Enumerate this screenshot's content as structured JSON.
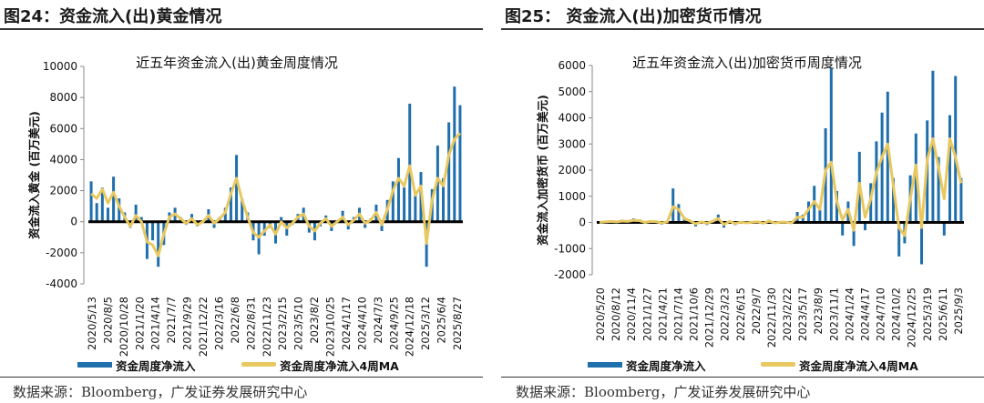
{
  "source": "数据来源：Bloomberg，广发证券发展研究中心",
  "colors": {
    "bar": "#1f6fad",
    "ma": "#e8c860",
    "zero": "#000000"
  },
  "chart_data": [
    {
      "type": "bar+line",
      "figure_title": "图24：资金流入(出)黄金情况",
      "title": "近五年资金流入(出)黄金周度情况",
      "ylabel": "资金流入黄金 (百万美元)",
      "ylim": [
        -4000,
        10000
      ],
      "yticks": [
        -4000,
        -2000,
        0,
        2000,
        4000,
        6000,
        8000,
        10000
      ],
      "xticks": [
        "2020/5/13",
        "2020/8/5",
        "2020/10/28",
        "2021/1/20",
        "2021/4/14",
        "2021/7/7",
        "2021/9/29",
        "2021/12/22",
        "2022/3/16",
        "2022/6/8",
        "2022/8/31",
        "2022/11/23",
        "2023/2/15",
        "2023/5/10",
        "2023/8/2",
        "2023/10/25",
        "2024/1/17",
        "2024/4/10",
        "2024/7/3",
        "2024/9/25",
        "2024/12/18",
        "2025/3/12",
        "2025/6/4",
        "2025/8/27"
      ],
      "series": [
        {
          "name": "资金周度净流入",
          "kind": "bar",
          "values": [
            2600,
            1200,
            2200,
            900,
            2900,
            1500,
            600,
            -400,
            1100,
            300,
            -2400,
            -1200,
            -2900,
            -1500,
            600,
            900,
            300,
            -200,
            500,
            -300,
            100,
            800,
            -400,
            300,
            900,
            2200,
            4300,
            1500,
            600,
            -1200,
            -2100,
            -900,
            -400,
            -1400,
            300,
            -900,
            -200,
            500,
            900,
            -700,
            -1200,
            -300,
            400,
            -600,
            -100,
            700,
            -500,
            300,
            900,
            -400,
            200,
            1100,
            -600,
            1400,
            2600,
            4100,
            2200,
            7600,
            1800,
            3200,
            -2900,
            2100,
            4900,
            2800,
            6400,
            8700,
            7500
          ]
        },
        {
          "name": "资金周度净流入4周MA",
          "kind": "line",
          "values": [
            1800,
            1500,
            2100,
            1200,
            1900,
            1000,
            300,
            -300,
            400,
            0,
            -1300,
            -1500,
            -2200,
            -800,
            300,
            500,
            200,
            -100,
            200,
            -200,
            0,
            400,
            -100,
            200,
            600,
            1800,
            2800,
            1400,
            300,
            -700,
            -1000,
            -600,
            -200,
            -800,
            0,
            -400,
            -100,
            300,
            500,
            -300,
            -600,
            -100,
            200,
            -300,
            0,
            300,
            -200,
            100,
            500,
            -100,
            100,
            600,
            -200,
            800,
            2000,
            2800,
            2300,
            3600,
            1700,
            2300,
            -1400,
            1400,
            2800,
            2300,
            4300,
            5300,
            5700
          ]
        }
      ]
    },
    {
      "type": "bar+line",
      "figure_title": "图25：   资金流入(出)加密货币情况",
      "title": "近五年资金流入(出)加密货币周度情况",
      "ylabel": "资金流入加密货币 (百万美元)",
      "ylim": [
        -2000,
        6000
      ],
      "yticks": [
        -2000,
        -1000,
        0,
        1000,
        2000,
        3000,
        4000,
        5000,
        6000
      ],
      "xticks": [
        "2020/5/20",
        "2020/8/12",
        "2020/11/4",
        "2021/1/27",
        "2021/4/21",
        "2021/7/14",
        "2021/10/6",
        "2021/12/29",
        "2022/3/23",
        "2022/6/15",
        "2022/9/7",
        "2022/11/30",
        "2023/2/22",
        "2023/5/17",
        "2023/8/9",
        "2023/11/1",
        "2024/1/24",
        "2024/4/17",
        "2024/7/10",
        "2024/10/2",
        "2024/12/25",
        "2025/3/19",
        "2025/6/11",
        "2025/9/3"
      ],
      "series": [
        {
          "name": "资金周度净流入",
          "kind": "bar",
          "values": [
            50,
            40,
            80,
            30,
            100,
            60,
            150,
            120,
            -50,
            80,
            60,
            -80,
            40,
            1300,
            700,
            200,
            100,
            -150,
            50,
            -100,
            80,
            300,
            -200,
            60,
            -100,
            20,
            -50,
            30,
            40,
            -60,
            100,
            -50,
            30,
            20,
            -40,
            400,
            300,
            800,
            1400,
            600,
            3600,
            5900,
            1200,
            -500,
            800,
            -900,
            2700,
            -300,
            1500,
            3100,
            4200,
            5000,
            1700,
            -1300,
            -800,
            1800,
            3400,
            -1600,
            3900,
            5800,
            2500,
            -500,
            4100,
            5600,
            1700
          ]
        },
        {
          "name": "资金周度净流入4周MA",
          "kind": "line",
          "values": [
            0,
            20,
            40,
            20,
            50,
            40,
            80,
            70,
            0,
            40,
            30,
            -20,
            20,
            600,
            500,
            150,
            60,
            -50,
            20,
            -30,
            40,
            150,
            -80,
            40,
            -40,
            10,
            -20,
            10,
            20,
            -30,
            50,
            -20,
            10,
            10,
            -20,
            200,
            200,
            500,
            800,
            500,
            2000,
            2300,
            800,
            100,
            500,
            -300,
            1500,
            200,
            900,
            1900,
            2500,
            3000,
            1400,
            -200,
            -500,
            900,
            2200,
            -200,
            2400,
            3200,
            2100,
            900,
            3200,
            2500,
            1500
          ]
        }
      ]
    }
  ]
}
